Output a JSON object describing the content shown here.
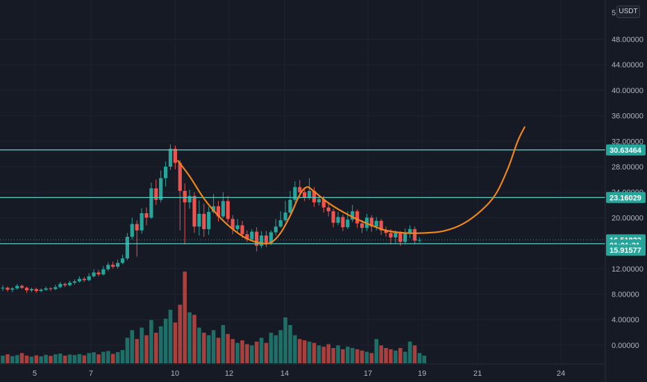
{
  "currency": "USDT",
  "top_tick_label": "5",
  "top_tick_suffix": "0",
  "chart_data": {
    "type": "candlestick",
    "price_ticks": [
      "48.00000",
      "44.00000",
      "40.00000",
      "36.00000",
      "32.00000",
      "28.00000",
      "24.00000",
      "20.00000",
      "16.00000",
      "12.00000",
      "8.00000",
      "4.00000",
      "0.00000"
    ],
    "x_ticks": [
      "5",
      "7",
      "10",
      "12",
      "14",
      "17",
      "19",
      "21",
      "24"
    ],
    "price_tags": [
      {
        "label": "30.63464",
        "value": 30.63464,
        "color": "#26a69a"
      },
      {
        "label": "23.16029",
        "value": 23.16029,
        "color": "#26a69a"
      },
      {
        "label": "16.51822",
        "value": 16.51822,
        "color": "#26a69a"
      },
      {
        "label": "01:01:31",
        "value": 15.7,
        "color": "#26a69a"
      },
      {
        "label": "15.91577",
        "value": 14.9,
        "color": "#26a69a"
      }
    ],
    "horizontal_levels": [
      30.63464,
      23.16029,
      15.91577
    ],
    "horizontal_level_color": "#4dd0c4",
    "last_price_dotted": 16.51822,
    "up_color": "#26a69a",
    "down_color": "#ef5350",
    "candles": [
      {
        "o": 8.9,
        "c": 9.0,
        "h": 9.4,
        "l": 8.5
      },
      {
        "o": 9.0,
        "c": 8.7,
        "h": 9.2,
        "l": 8.4
      },
      {
        "o": 8.7,
        "c": 8.9,
        "h": 9.1,
        "l": 8.3
      },
      {
        "o": 8.9,
        "c": 9.3,
        "h": 9.6,
        "l": 8.7
      },
      {
        "o": 9.3,
        "c": 9.0,
        "h": 9.5,
        "l": 8.8
      },
      {
        "o": 9.0,
        "c": 8.6,
        "h": 9.2,
        "l": 8.2
      },
      {
        "o": 8.6,
        "c": 8.8,
        "h": 9.0,
        "l": 8.3
      },
      {
        "o": 8.8,
        "c": 8.5,
        "h": 9.0,
        "l": 8.2
      },
      {
        "o": 8.5,
        "c": 8.7,
        "h": 8.9,
        "l": 8.3
      },
      {
        "o": 8.7,
        "c": 8.9,
        "h": 9.2,
        "l": 8.5
      },
      {
        "o": 8.9,
        "c": 8.8,
        "h": 9.1,
        "l": 8.5
      },
      {
        "o": 8.8,
        "c": 9.1,
        "h": 9.5,
        "l": 8.6
      },
      {
        "o": 9.1,
        "c": 9.6,
        "h": 9.9,
        "l": 8.9
      },
      {
        "o": 9.6,
        "c": 9.4,
        "h": 9.8,
        "l": 9.1
      },
      {
        "o": 9.4,
        "c": 9.8,
        "h": 10.1,
        "l": 9.2
      },
      {
        "o": 9.8,
        "c": 10.0,
        "h": 10.3,
        "l": 9.5
      },
      {
        "o": 10.0,
        "c": 10.4,
        "h": 10.8,
        "l": 9.8
      },
      {
        "o": 10.4,
        "c": 10.2,
        "h": 10.7,
        "l": 9.9
      },
      {
        "o": 10.2,
        "c": 10.8,
        "h": 11.3,
        "l": 10.0
      },
      {
        "o": 10.8,
        "c": 11.4,
        "h": 11.9,
        "l": 10.6
      },
      {
        "o": 11.4,
        "c": 11.1,
        "h": 11.8,
        "l": 10.8
      },
      {
        "o": 11.1,
        "c": 11.9,
        "h": 12.4,
        "l": 10.9
      },
      {
        "o": 11.9,
        "c": 12.6,
        "h": 13.0,
        "l": 11.6
      },
      {
        "o": 12.6,
        "c": 12.3,
        "h": 13.1,
        "l": 12.0
      },
      {
        "o": 12.3,
        "c": 12.9,
        "h": 13.4,
        "l": 12.0
      },
      {
        "o": 12.9,
        "c": 13.6,
        "h": 14.2,
        "l": 12.7
      },
      {
        "o": 13.6,
        "c": 17.0,
        "h": 17.6,
        "l": 13.3
      },
      {
        "o": 17.0,
        "c": 19.0,
        "h": 20.0,
        "l": 16.6
      },
      {
        "o": 19.0,
        "c": 18.0,
        "h": 19.6,
        "l": 13.9
      },
      {
        "o": 18.0,
        "c": 20.7,
        "h": 21.5,
        "l": 17.5
      },
      {
        "o": 20.7,
        "c": 20.0,
        "h": 21.6,
        "l": 18.8
      },
      {
        "o": 20.0,
        "c": 24.6,
        "h": 25.5,
        "l": 19.8
      },
      {
        "o": 24.6,
        "c": 22.8,
        "h": 26.0,
        "l": 22.0
      },
      {
        "o": 22.8,
        "c": 26.2,
        "h": 27.4,
        "l": 22.4
      },
      {
        "o": 26.2,
        "c": 28.0,
        "h": 28.8,
        "l": 24.9
      },
      {
        "o": 28.0,
        "c": 30.8,
        "h": 31.5,
        "l": 27.5
      },
      {
        "o": 30.8,
        "c": 28.6,
        "h": 31.3,
        "l": 27.6
      },
      {
        "o": 28.6,
        "c": 24.2,
        "h": 29.0,
        "l": 18.0
      },
      {
        "o": 24.2,
        "c": 22.4,
        "h": 25.4,
        "l": 15.8
      },
      {
        "o": 22.4,
        "c": 23.4,
        "h": 24.4,
        "l": 21.4
      },
      {
        "o": 23.4,
        "c": 18.6,
        "h": 24.0,
        "l": 17.6
      },
      {
        "o": 18.6,
        "c": 20.6,
        "h": 22.7,
        "l": 17.2
      },
      {
        "o": 20.6,
        "c": 18.2,
        "h": 22.2,
        "l": 17.0
      },
      {
        "o": 18.2,
        "c": 20.9,
        "h": 21.7,
        "l": 17.3
      },
      {
        "o": 20.9,
        "c": 21.8,
        "h": 23.7,
        "l": 20.7
      },
      {
        "o": 21.8,
        "c": 20.2,
        "h": 22.6,
        "l": 19.4
      },
      {
        "o": 20.2,
        "c": 22.6,
        "h": 24.0,
        "l": 19.9
      },
      {
        "o": 22.6,
        "c": 19.8,
        "h": 23.4,
        "l": 19.2
      },
      {
        "o": 19.8,
        "c": 18.2,
        "h": 20.4,
        "l": 17.4
      },
      {
        "o": 18.2,
        "c": 18.8,
        "h": 19.8,
        "l": 17.5
      },
      {
        "o": 18.8,
        "c": 17.4,
        "h": 19.5,
        "l": 16.8
      },
      {
        "o": 17.4,
        "c": 16.6,
        "h": 18.0,
        "l": 16.2
      },
      {
        "o": 16.6,
        "c": 17.8,
        "h": 18.2,
        "l": 16.4
      },
      {
        "o": 17.8,
        "c": 15.6,
        "h": 18.5,
        "l": 14.7
      },
      {
        "o": 15.6,
        "c": 17.2,
        "h": 17.9,
        "l": 15.2
      },
      {
        "o": 17.2,
        "c": 16.0,
        "h": 17.9,
        "l": 15.4
      },
      {
        "o": 16.0,
        "c": 17.7,
        "h": 18.0,
        "l": 15.7
      },
      {
        "o": 17.7,
        "c": 18.6,
        "h": 19.8,
        "l": 17.2
      },
      {
        "o": 18.6,
        "c": 19.6,
        "h": 21.0,
        "l": 18.4
      },
      {
        "o": 19.6,
        "c": 20.8,
        "h": 22.6,
        "l": 19.3
      },
      {
        "o": 20.8,
        "c": 22.8,
        "h": 24.2,
        "l": 20.6
      },
      {
        "o": 22.8,
        "c": 24.8,
        "h": 25.7,
        "l": 22.4
      },
      {
        "o": 24.8,
        "c": 24.0,
        "h": 25.9,
        "l": 23.0
      },
      {
        "o": 24.0,
        "c": 23.2,
        "h": 24.6,
        "l": 22.6
      },
      {
        "o": 23.2,
        "c": 24.2,
        "h": 26.2,
        "l": 22.8
      },
      {
        "o": 24.2,
        "c": 22.4,
        "h": 24.8,
        "l": 21.7
      },
      {
        "o": 22.4,
        "c": 22.9,
        "h": 23.6,
        "l": 21.9
      },
      {
        "o": 22.9,
        "c": 21.6,
        "h": 23.4,
        "l": 20.8
      },
      {
        "o": 21.6,
        "c": 21.0,
        "h": 22.4,
        "l": 20.2
      },
      {
        "o": 21.0,
        "c": 19.2,
        "h": 21.4,
        "l": 18.5
      },
      {
        "o": 19.2,
        "c": 20.1,
        "h": 20.9,
        "l": 18.8
      },
      {
        "o": 20.1,
        "c": 18.5,
        "h": 20.5,
        "l": 17.9
      },
      {
        "o": 18.5,
        "c": 19.7,
        "h": 21.0,
        "l": 18.2
      },
      {
        "o": 19.7,
        "c": 21.0,
        "h": 22.0,
        "l": 19.3
      },
      {
        "o": 21.0,
        "c": 19.1,
        "h": 21.3,
        "l": 18.4
      },
      {
        "o": 19.1,
        "c": 18.4,
        "h": 19.6,
        "l": 17.6
      },
      {
        "o": 18.4,
        "c": 20.0,
        "h": 20.6,
        "l": 17.9
      },
      {
        "o": 20.0,
        "c": 18.6,
        "h": 20.4,
        "l": 17.8
      },
      {
        "o": 18.6,
        "c": 19.5,
        "h": 20.1,
        "l": 18.0
      },
      {
        "o": 19.5,
        "c": 18.0,
        "h": 19.8,
        "l": 17.3
      },
      {
        "o": 18.0,
        "c": 17.6,
        "h": 18.6,
        "l": 17.0
      },
      {
        "o": 17.6,
        "c": 16.9,
        "h": 18.2,
        "l": 15.8
      },
      {
        "o": 16.9,
        "c": 17.6,
        "h": 18.0,
        "l": 15.9
      },
      {
        "o": 17.6,
        "c": 16.2,
        "h": 17.9,
        "l": 15.6
      },
      {
        "o": 16.2,
        "c": 17.5,
        "h": 18.3,
        "l": 15.9
      },
      {
        "o": 17.5,
        "c": 18.2,
        "h": 18.8,
        "l": 16.8
      },
      {
        "o": 18.2,
        "c": 16.4,
        "h": 18.6,
        "l": 15.8
      },
      {
        "o": 16.4,
        "c": 16.5,
        "h": 16.9,
        "l": 16.1
      }
    ],
    "volumes": [
      0.3,
      0.35,
      0.28,
      0.32,
      0.4,
      0.3,
      0.26,
      0.31,
      0.27,
      0.33,
      0.29,
      0.35,
      0.38,
      0.3,
      0.34,
      0.32,
      0.36,
      0.31,
      0.4,
      0.43,
      0.35,
      0.45,
      0.48,
      0.37,
      0.44,
      0.52,
      1.0,
      1.3,
      0.95,
      1.4,
      1.1,
      1.7,
      1.2,
      1.45,
      1.75,
      2.1,
      1.6,
      2.3,
      3.6,
      2.0,
      1.9,
      1.4,
      1.2,
      1.1,
      1.3,
      1.0,
      1.5,
      1.15,
      0.95,
      0.8,
      0.9,
      0.75,
      0.7,
      0.85,
      1.0,
      0.8,
      1.2,
      1.1,
      1.3,
      1.8,
      1.5,
      1.1,
      0.95,
      0.9,
      0.85,
      0.8,
      0.7,
      0.65,
      0.75,
      0.6,
      0.7,
      0.55,
      0.65,
      0.6,
      0.55,
      0.5,
      0.45,
      0.4,
      0.95,
      0.7,
      0.6,
      0.55,
      0.5,
      0.6,
      0.45,
      0.85,
      0.7,
      0.4,
      0.3
    ],
    "trend_curve": [
      {
        "x": 36.5,
        "y": 29.0
      },
      {
        "x": 39,
        "y": 26.5
      },
      {
        "x": 42,
        "y": 23.0
      },
      {
        "x": 45,
        "y": 20.3
      },
      {
        "x": 48,
        "y": 18.2
      },
      {
        "x": 51,
        "y": 16.7
      },
      {
        "x": 54,
        "y": 16.0
      },
      {
        "x": 56,
        "y": 16.1
      },
      {
        "x": 58,
        "y": 17.6
      },
      {
        "x": 60,
        "y": 20.3
      },
      {
        "x": 62,
        "y": 23.6
      },
      {
        "x": 63.5,
        "y": 24.8
      },
      {
        "x": 65,
        "y": 24.1
      },
      {
        "x": 68,
        "y": 22.3
      },
      {
        "x": 72,
        "y": 20.5
      },
      {
        "x": 76,
        "y": 19.1
      },
      {
        "x": 80,
        "y": 18.0
      },
      {
        "x": 84,
        "y": 17.6
      },
      {
        "x": 88,
        "y": 17.6
      },
      {
        "x": 92,
        "y": 17.9
      },
      {
        "x": 96,
        "y": 19.0
      },
      {
        "x": 100,
        "y": 21.2
      },
      {
        "x": 103,
        "y": 23.8
      },
      {
        "x": 105.5,
        "y": 27.8
      },
      {
        "x": 107.5,
        "y": 32.0
      },
      {
        "x": 109,
        "y": 34.3
      }
    ],
    "trend_color": "#f0861a",
    "grid": true
  }
}
